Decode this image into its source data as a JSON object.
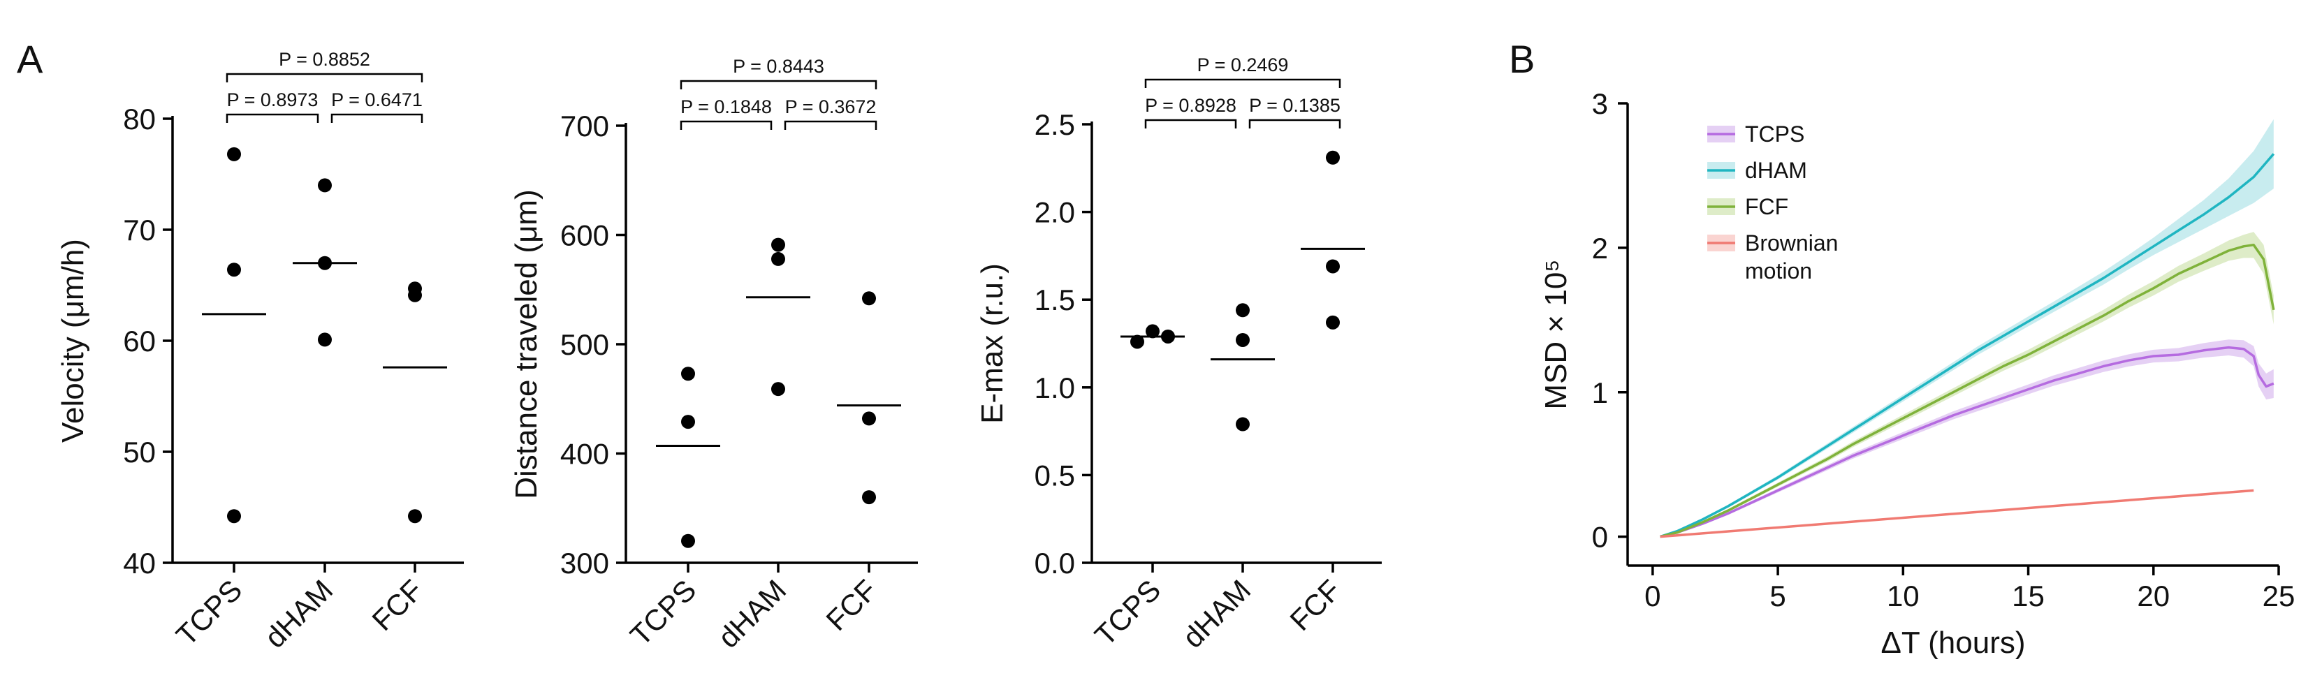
{
  "panel_labels": [
    "A",
    "B"
  ],
  "chart_data": [
    {
      "type": "scatter",
      "panel": "A",
      "ylabel": "Velocity (μm/h)",
      "categories": [
        "TCPS",
        "dHAM",
        "FCF"
      ],
      "ylim": [
        40,
        80
      ],
      "yticks": [
        40,
        50,
        60,
        70,
        80
      ],
      "points": [
        [
          76.8,
          66.4,
          44.2
        ],
        [
          74.0,
          67.0,
          60.1
        ],
        [
          64.7,
          64.1,
          44.2
        ]
      ],
      "means": [
        62.4,
        67.0,
        57.6
      ],
      "comparisons": [
        {
          "from": 0,
          "to": 1,
          "label": "P = 0.8973",
          "p": 0.8973
        },
        {
          "from": 1,
          "to": 2,
          "label": "P = 0.6471",
          "p": 0.6471
        },
        {
          "from": 0,
          "to": 2,
          "label": "P = 0.8852",
          "p": 0.8852
        }
      ]
    },
    {
      "type": "scatter",
      "panel": "A",
      "ylabel": "Distance traveled (μm)",
      "categories": [
        "TCPS",
        "dHAM",
        "FCF"
      ],
      "ylim": [
        300,
        700
      ],
      "yticks": [
        300,
        400,
        500,
        600,
        700
      ],
      "points": [
        [
          473,
          429,
          320
        ],
        [
          591,
          578,
          459
        ],
        [
          542,
          432,
          360
        ]
      ],
      "means": [
        407,
        543,
        444
      ],
      "comparisons": [
        {
          "from": 0,
          "to": 1,
          "label": "P = 0.1848",
          "p": 0.1848
        },
        {
          "from": 1,
          "to": 2,
          "label": "P = 0.3672",
          "p": 0.3672
        },
        {
          "from": 0,
          "to": 2,
          "label": "P = 0.8443",
          "p": 0.8443
        }
      ]
    },
    {
      "type": "scatter",
      "panel": "A",
      "ylabel": "E-max (r.u.)",
      "categories": [
        "TCPS",
        "dHAM",
        "FCF"
      ],
      "ylim": [
        0.0,
        2.5
      ],
      "yticks": [
        0.0,
        0.5,
        1.0,
        1.5,
        2.0,
        2.5
      ],
      "ytick_decimals": 1,
      "points": [
        [
          1.26,
          1.32,
          1.29
        ],
        [
          1.44,
          1.27,
          0.79
        ],
        [
          2.31,
          1.69,
          1.37
        ]
      ],
      "point_offsets": [
        [
          -1,
          0,
          1
        ],
        [
          0,
          0,
          0
        ],
        [
          0,
          0,
          0
        ]
      ],
      "means": [
        1.29,
        1.16,
        1.79
      ],
      "comparisons": [
        {
          "from": 0,
          "to": 1,
          "label": "P = 0.8928",
          "p": 0.8928
        },
        {
          "from": 1,
          "to": 2,
          "label": "P = 0.1385",
          "p": 0.1385
        },
        {
          "from": 0,
          "to": 2,
          "label": "P = 0.2469",
          "p": 0.2469
        }
      ]
    },
    {
      "type": "line",
      "panel": "B",
      "xlabel": "ΔT (hours)",
      "ylabel": "MSD × 10⁵",
      "xlim": [
        -1,
        25
      ],
      "ylim": [
        -0.2,
        3
      ],
      "xticks": [
        0,
        5,
        10,
        15,
        20,
        25
      ],
      "yticks": [
        0,
        1,
        2,
        3
      ],
      "legend_position": "top-left",
      "series": [
        {
          "name": "TCPS",
          "color": "#b56be0",
          "band_color": "#dcc0f0",
          "x": [
            0.3,
            1,
            2,
            3,
            4,
            5,
            6,
            7,
            8,
            9,
            10,
            11,
            12,
            13,
            14,
            15,
            16,
            17,
            18,
            19,
            20,
            21,
            22,
            23,
            23.6,
            24,
            24.2,
            24.5,
            24.8
          ],
          "y": [
            0,
            0.03,
            0.09,
            0.16,
            0.24,
            0.32,
            0.4,
            0.48,
            0.56,
            0.63,
            0.7,
            0.77,
            0.84,
            0.9,
            0.96,
            1.02,
            1.08,
            1.13,
            1.18,
            1.22,
            1.25,
            1.26,
            1.29,
            1.31,
            1.3,
            1.25,
            1.12,
            1.04,
            1.06
          ],
          "band": [
            0,
            0.005,
            0.008,
            0.01,
            0.012,
            0.014,
            0.016,
            0.018,
            0.02,
            0.022,
            0.024,
            0.026,
            0.028,
            0.03,
            0.032,
            0.034,
            0.036,
            0.038,
            0.04,
            0.042,
            0.044,
            0.046,
            0.05,
            0.055,
            0.06,
            0.07,
            0.08,
            0.09,
            0.1
          ]
        },
        {
          "name": "dHAM",
          "color": "#1fb5c1",
          "band_color": "#b5e6ea",
          "x": [
            0.3,
            1,
            2,
            3,
            4,
            5,
            6,
            7,
            8,
            9,
            10,
            11,
            12,
            13,
            14,
            15,
            16,
            17,
            18,
            19,
            20,
            21,
            22,
            23,
            24,
            24.8
          ],
          "y": [
            0,
            0.04,
            0.12,
            0.21,
            0.31,
            0.41,
            0.52,
            0.63,
            0.74,
            0.85,
            0.96,
            1.07,
            1.18,
            1.29,
            1.39,
            1.49,
            1.59,
            1.69,
            1.79,
            1.9,
            2.01,
            2.12,
            2.23,
            2.35,
            2.49,
            2.65
          ],
          "band": [
            0,
            0.005,
            0.008,
            0.01,
            0.012,
            0.014,
            0.016,
            0.018,
            0.02,
            0.022,
            0.024,
            0.026,
            0.028,
            0.03,
            0.032,
            0.034,
            0.036,
            0.04,
            0.045,
            0.05,
            0.06,
            0.08,
            0.1,
            0.13,
            0.18,
            0.24
          ]
        },
        {
          "name": "FCF",
          "color": "#7fb23a",
          "band_color": "#d3e6b5",
          "x": [
            0.3,
            1,
            2,
            3,
            4,
            5,
            6,
            7,
            8,
            9,
            10,
            11,
            12,
            13,
            14,
            15,
            16,
            17,
            18,
            19,
            20,
            21,
            22,
            23,
            23.6,
            24,
            24.4,
            24.8
          ],
          "y": [
            0,
            0.03,
            0.1,
            0.18,
            0.27,
            0.36,
            0.45,
            0.54,
            0.64,
            0.73,
            0.82,
            0.91,
            1.0,
            1.09,
            1.18,
            1.26,
            1.35,
            1.44,
            1.53,
            1.63,
            1.72,
            1.82,
            1.9,
            1.98,
            2.01,
            2.02,
            1.92,
            1.57
          ],
          "band": [
            0,
            0.005,
            0.008,
            0.01,
            0.012,
            0.014,
            0.016,
            0.018,
            0.02,
            0.022,
            0.024,
            0.026,
            0.028,
            0.03,
            0.032,
            0.034,
            0.036,
            0.038,
            0.04,
            0.045,
            0.05,
            0.055,
            0.06,
            0.07,
            0.08,
            0.09,
            0.1,
            0.1
          ]
        },
        {
          "name": "Brownian motion",
          "legend_lines": [
            "Brownian",
            "motion"
          ],
          "color": "#f07a72",
          "band_color": "#f8c6c2",
          "x": [
            0.3,
            24
          ],
          "y": [
            0,
            0.32
          ],
          "band": [
            0,
            0
          ]
        }
      ]
    }
  ]
}
